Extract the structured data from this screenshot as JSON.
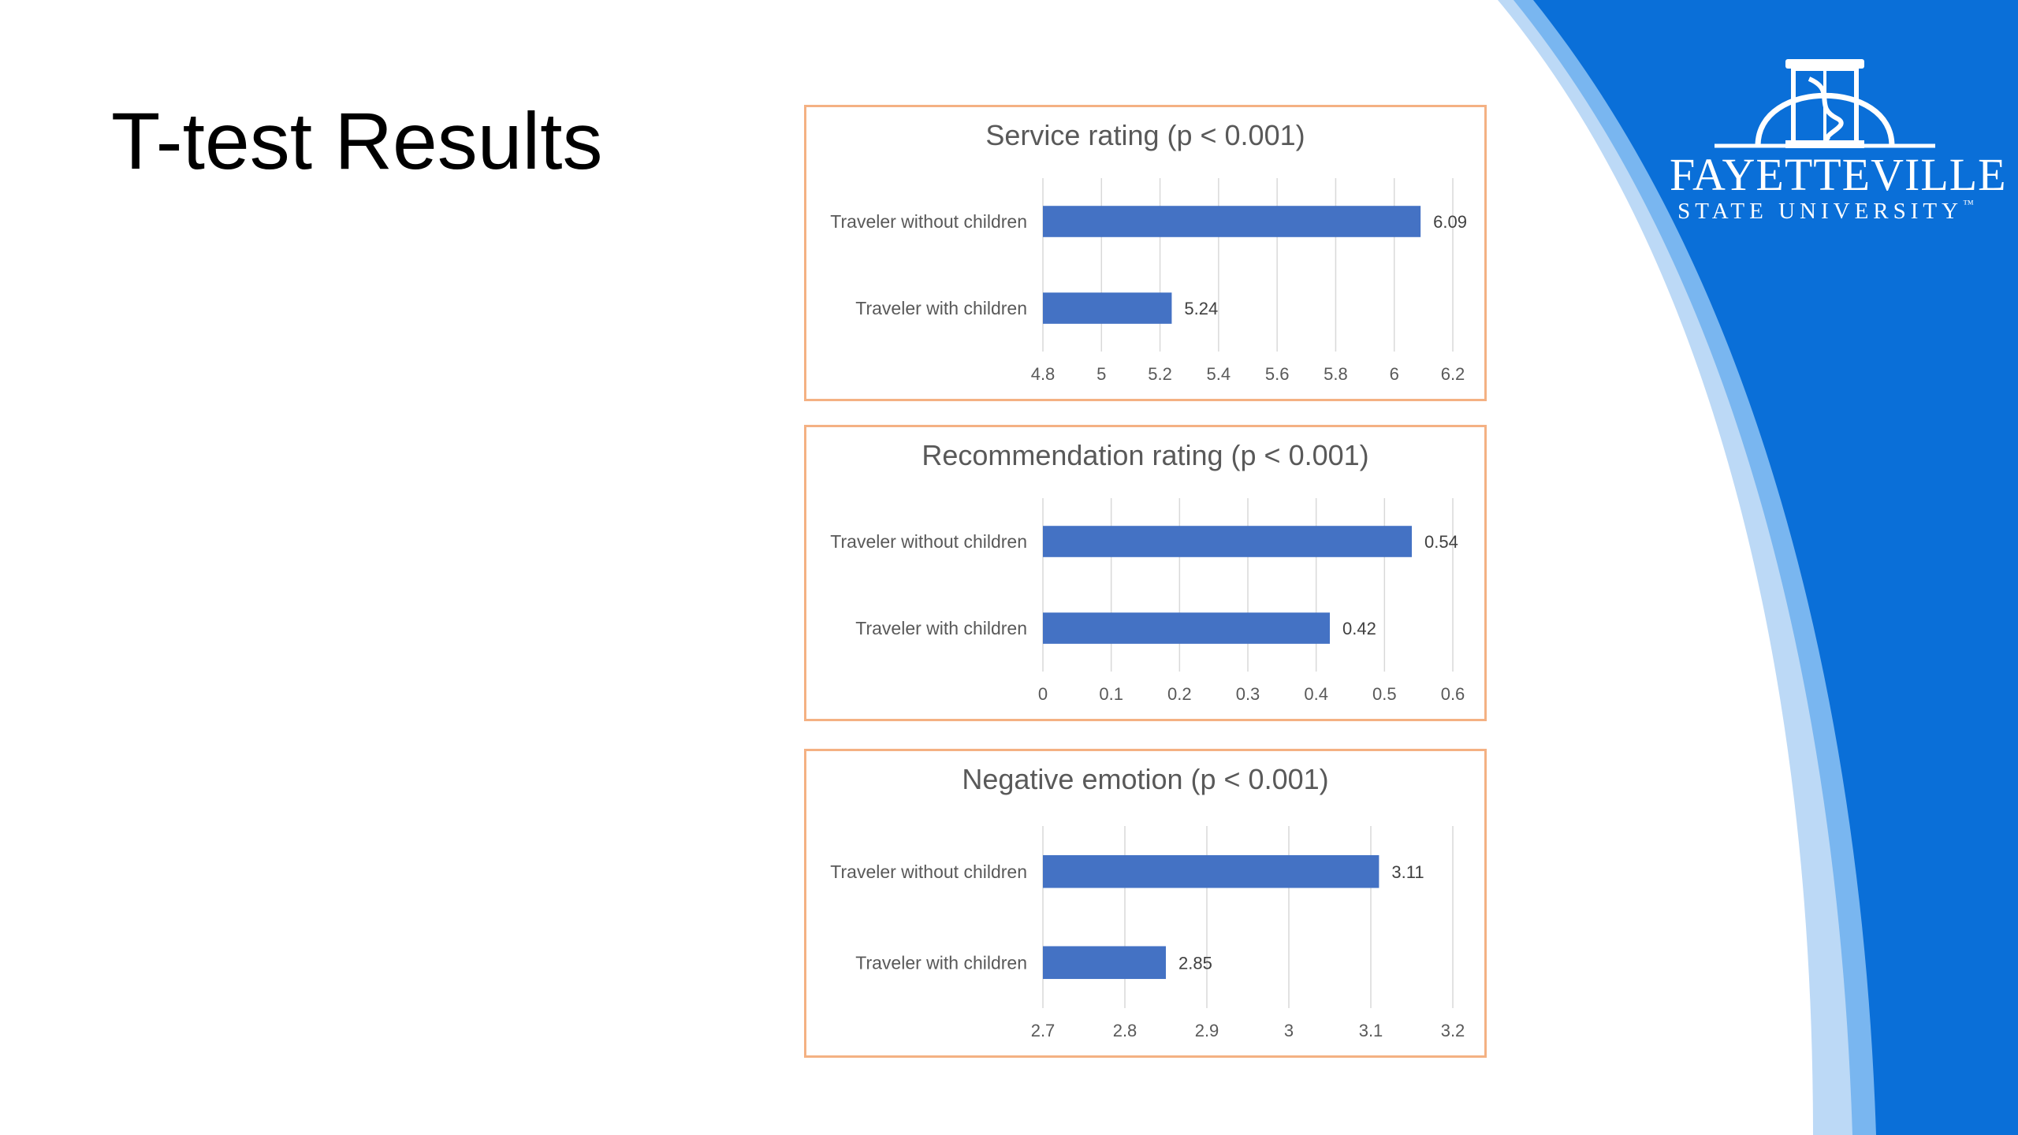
{
  "slide": {
    "title": "T-test Results",
    "accent_color": "#0a6fd8",
    "logo": {
      "line1": "FAYETTEVILLE",
      "line2": "STATE UNIVERSITY",
      "tm": "™",
      "icon": "university-seal-icon"
    }
  },
  "chart_data": [
    {
      "type": "bar",
      "orientation": "horizontal",
      "title": "Service rating (p < 0.001)",
      "categories": [
        "Traveler without children",
        "Traveler with children"
      ],
      "values": [
        6.09,
        5.24
      ],
      "value_labels": [
        "6.09",
        "5.24"
      ],
      "xlim": [
        4.8,
        6.2
      ],
      "ticks": [
        4.8,
        5,
        5.2,
        5.4,
        5.6,
        5.8,
        6,
        6.2
      ],
      "tick_labels": [
        "4.8",
        "5",
        "5.2",
        "5.4",
        "5.6",
        "5.8",
        "6",
        "6.2"
      ],
      "grid": true,
      "bar_color": "#4472c4"
    },
    {
      "type": "bar",
      "orientation": "horizontal",
      "title": "Recommendation rating (p < 0.001)",
      "categories": [
        "Traveler without children",
        "Traveler with children"
      ],
      "values": [
        0.54,
        0.42
      ],
      "value_labels": [
        "0.54",
        "0.42"
      ],
      "xlim": [
        0,
        0.6
      ],
      "ticks": [
        0,
        0.1,
        0.2,
        0.3,
        0.4,
        0.5,
        0.6
      ],
      "tick_labels": [
        "0",
        "0.1",
        "0.2",
        "0.3",
        "0.4",
        "0.5",
        "0.6"
      ],
      "grid": true,
      "bar_color": "#4472c4"
    },
    {
      "type": "bar",
      "orientation": "horizontal",
      "title": "Negative emotion (p < 0.001)",
      "categories": [
        "Traveler without children",
        "Traveler with children"
      ],
      "values": [
        3.11,
        2.85
      ],
      "value_labels": [
        "3.11",
        "2.85"
      ],
      "xlim": [
        2.7,
        3.2
      ],
      "ticks": [
        2.7,
        2.8,
        2.9,
        3,
        3.1,
        3.2
      ],
      "tick_labels": [
        "2.7",
        "2.8",
        "2.9",
        "3",
        "3.1",
        "3.2"
      ],
      "grid": true,
      "bar_color": "#4472c4"
    }
  ]
}
